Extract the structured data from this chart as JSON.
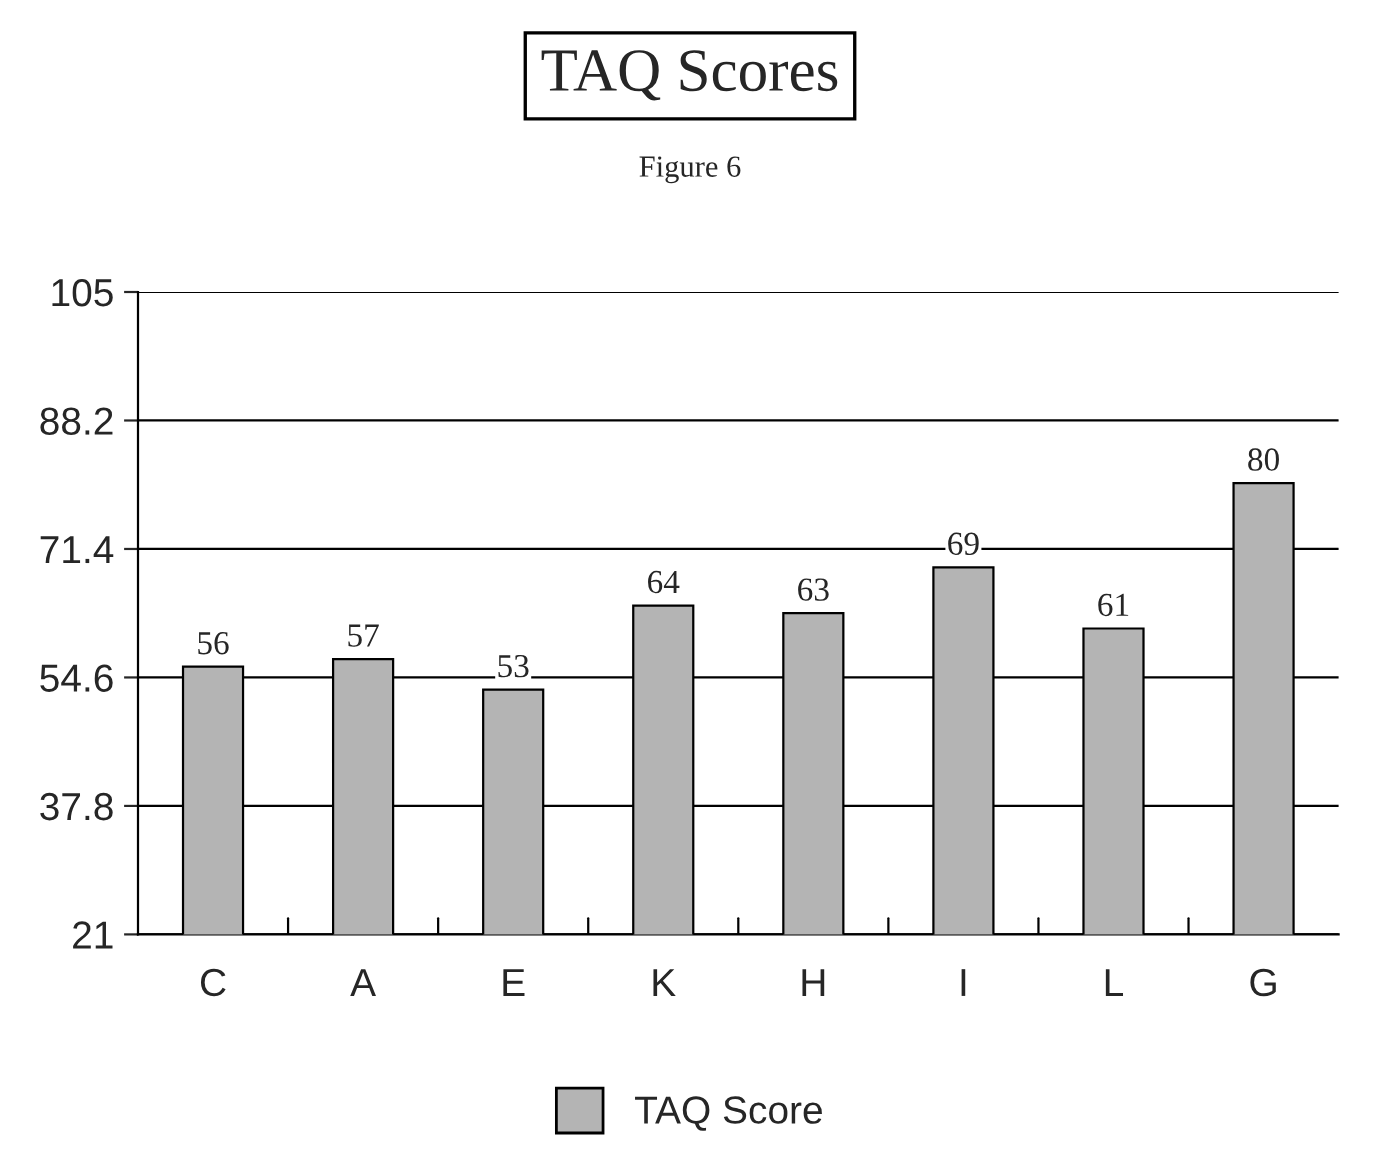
{
  "chart_data": {
    "type": "bar",
    "title": "TAQ Scores",
    "subtitle": "Figure 6",
    "categories": [
      "C",
      "A",
      "E",
      "K",
      "H",
      "I",
      "L",
      "G"
    ],
    "series": [
      {
        "name": "TAQ Score",
        "color": "#b4b4b4",
        "values": [
          56,
          57,
          53,
          64,
          63,
          69,
          61,
          80
        ]
      }
    ],
    "ylim": [
      21,
      105
    ],
    "yticks": [
      21,
      37.8,
      54.6,
      71.4,
      88.2,
      105
    ],
    "grid": "y",
    "legend": "bottom",
    "data_labels": true
  }
}
